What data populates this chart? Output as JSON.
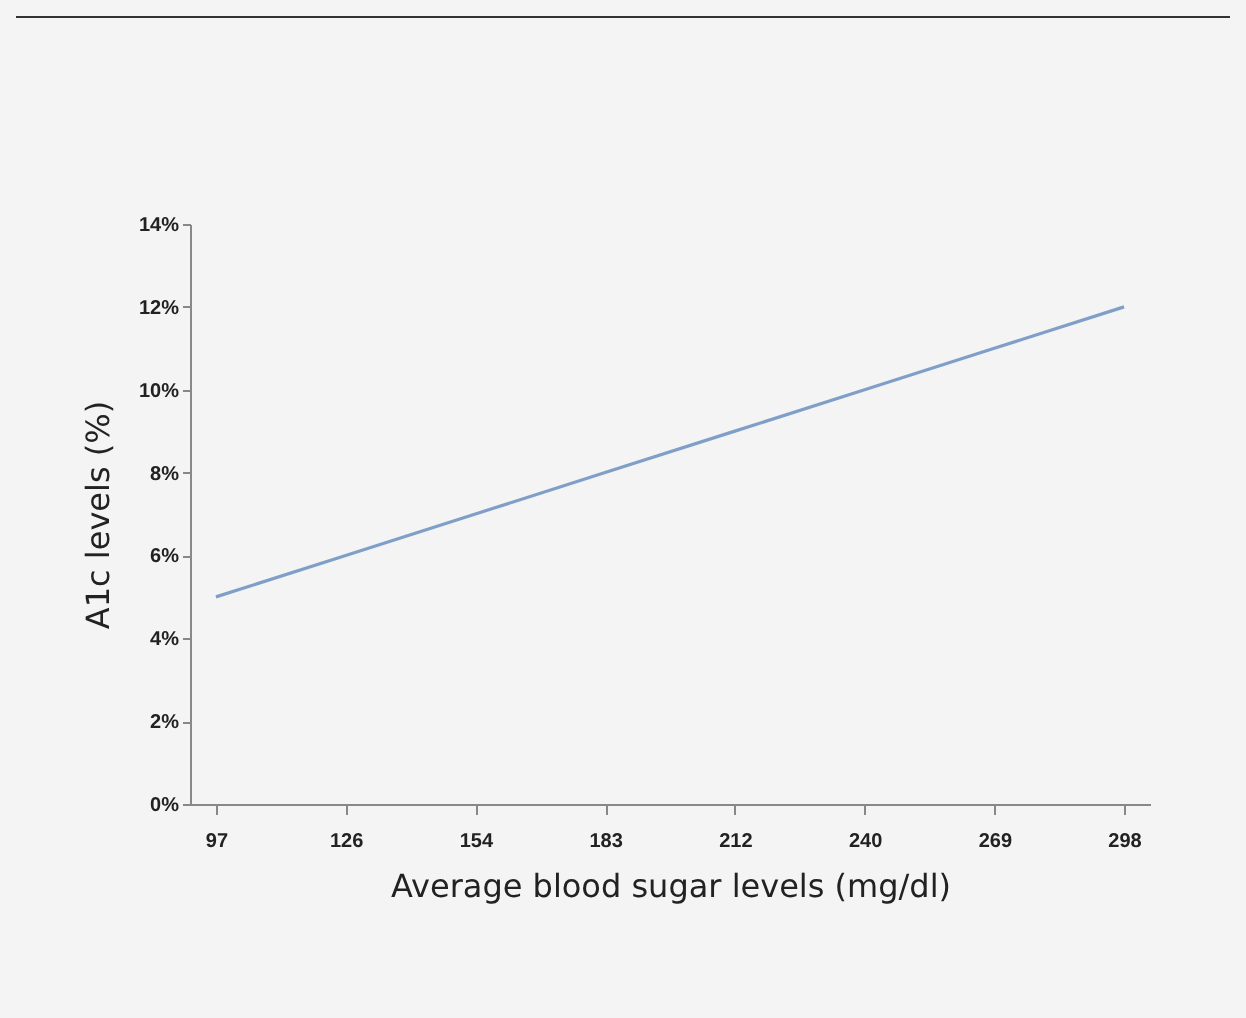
{
  "chart_data": {
    "type": "line",
    "xlabel": "Average blood sugar levels (mg/dl)",
    "ylabel": "A1c levels (%)",
    "categories": [
      "97",
      "126",
      "154",
      "183",
      "212",
      "240",
      "269",
      "298"
    ],
    "series": [
      {
        "color": "#7f9fc8",
        "values": [
          5,
          6,
          7,
          8,
          9,
          10,
          11,
          12
        ]
      }
    ],
    "ylim": [
      0,
      14
    ],
    "yticks": [
      {
        "value": 0,
        "label": "0%"
      },
      {
        "value": 2,
        "label": "2%"
      },
      {
        "value": 4,
        "label": "4%"
      },
      {
        "value": 6,
        "label": "6%"
      },
      {
        "value": 8,
        "label": "8%"
      },
      {
        "value": 10,
        "label": "10%"
      },
      {
        "value": 12,
        "label": "12%"
      },
      {
        "value": 14,
        "label": "14%"
      }
    ],
    "grid": false,
    "marker": "none",
    "line_style": "solid"
  }
}
